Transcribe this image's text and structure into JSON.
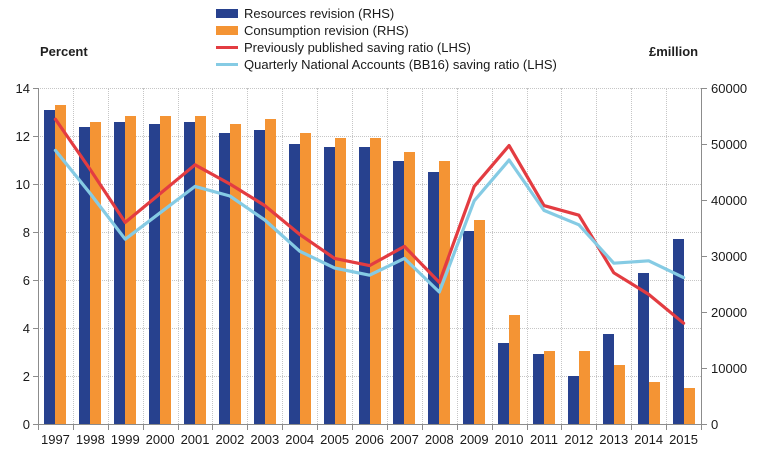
{
  "chart_data": {
    "type": "combo",
    "title": "",
    "legend_position": "top",
    "grid": true,
    "categories": [
      "1997",
      "1998",
      "1999",
      "2000",
      "2001",
      "2002",
      "2003",
      "2004",
      "2005",
      "2006",
      "2007",
      "2008",
      "2009",
      "2010",
      "2011",
      "2012",
      "2013",
      "2014",
      "2015"
    ],
    "series": [
      {
        "name": "Resources revision (RHS)",
        "type": "bar",
        "axis": "right",
        "color": "#27418e",
        "values": [
          56000,
          53000,
          54000,
          53500,
          54000,
          52000,
          52500,
          50000,
          49500,
          49500,
          47000,
          45000,
          34500,
          14500,
          12500,
          8500,
          16000,
          27000,
          33000
        ]
      },
      {
        "name": "Consumption revision (RHS)",
        "type": "bar",
        "axis": "right",
        "color": "#f49434",
        "values": [
          57000,
          54000,
          55000,
          55000,
          55000,
          53500,
          54500,
          52000,
          51000,
          51000,
          48500,
          47000,
          36500,
          19500,
          13000,
          13000,
          10500,
          7500,
          6500
        ]
      },
      {
        "name": "Previously published saving ratio (LHS)",
        "type": "line",
        "axis": "left",
        "color": "#e33c41",
        "values": [
          12.7,
          10.6,
          8.4,
          9.6,
          10.8,
          10.0,
          9.1,
          7.9,
          6.9,
          6.6,
          7.4,
          5.9,
          9.9,
          11.6,
          9.1,
          8.7,
          6.3,
          5.4,
          4.2
        ]
      },
      {
        "name": "Quarterly National Accounts (BB16) saving ratio (LHS)",
        "type": "line",
        "axis": "left",
        "color": "#85cbe4",
        "values": [
          11.4,
          9.6,
          7.7,
          8.8,
          9.9,
          9.5,
          8.5,
          7.2,
          6.5,
          6.2,
          6.9,
          5.5,
          9.3,
          11.0,
          8.9,
          8.3,
          6.7,
          6.8,
          6.1
        ]
      }
    ],
    "axes": {
      "left": {
        "title": "Percent",
        "min": 0,
        "max": 14,
        "step": 2,
        "tick_labels": [
          "0",
          "2",
          "4",
          "6",
          "8",
          "10",
          "12",
          "14"
        ]
      },
      "right": {
        "title": "£million",
        "min": 0,
        "max": 60000,
        "step": 10000,
        "tick_labels": [
          "0",
          "10000",
          "20000",
          "30000",
          "40000",
          "50000",
          "60000"
        ]
      }
    },
    "colors": {
      "gridline": "#c6c6c6",
      "axis_line": "#8c8c8c",
      "text": "#1a1a1a"
    }
  }
}
